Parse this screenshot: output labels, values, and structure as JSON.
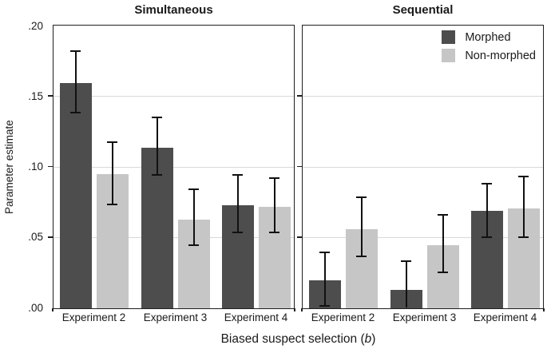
{
  "colors": {
    "morphed": "#4d4d4d",
    "non_morphed": "#c6c6c6",
    "gridline": "#d9d9d9",
    "axis": "#1f1f1f",
    "error_bar": "#111111",
    "background": "#ffffff"
  },
  "chart_data": {
    "type": "bar",
    "title": "",
    "ylabel": "Parameter estimate",
    "xlabel": "Biased suspect selection (b)",
    "xlabel_parts": {
      "prefix": "Biased suspect selection (",
      "variable": "b",
      "suffix": ")"
    },
    "ylim": [
      0,
      0.2
    ],
    "yticks": [
      0,
      0.05,
      0.1,
      0.15,
      0.2
    ],
    "ytick_labels": [
      ".00",
      ".05",
      ".10",
      ".15",
      ".20"
    ],
    "grid": true,
    "legend": {
      "position": "top-right-of-sequential-panel",
      "entries": [
        {
          "label": "Morphed",
          "color": "#4d4d4d"
        },
        {
          "label": "Non-morphed",
          "color": "#c6c6c6"
        }
      ]
    },
    "panels": [
      {
        "title": "Simultaneous",
        "categories": [
          "Experiment 2",
          "Experiment 3",
          "Experiment 4"
        ],
        "series": [
          {
            "name": "Morphed",
            "values": [
              0.16,
              0.114,
              0.073
            ],
            "err_low": [
              0.138,
              0.094,
              0.053
            ],
            "err_high": [
              0.182,
              0.135,
              0.094
            ]
          },
          {
            "name": "Non-morphed",
            "values": [
              0.095,
              0.063,
              0.072
            ],
            "err_low": [
              0.073,
              0.044,
              0.053
            ],
            "err_high": [
              0.117,
              0.084,
              0.092
            ]
          }
        ]
      },
      {
        "title": "Sequential",
        "categories": [
          "Experiment 2",
          "Experiment 3",
          "Experiment 4"
        ],
        "series": [
          {
            "name": "Morphed",
            "values": [
              0.02,
              0.013,
              0.069
            ],
            "err_low": [
              0.001,
              -0.006,
              0.05
            ],
            "err_high": [
              0.039,
              0.033,
              0.088
            ]
          },
          {
            "name": "Non-morphed",
            "values": [
              0.056,
              0.045,
              0.071
            ],
            "err_low": [
              0.036,
              0.025,
              0.05
            ],
            "err_high": [
              0.078,
              0.066,
              0.093
            ]
          }
        ]
      }
    ]
  }
}
